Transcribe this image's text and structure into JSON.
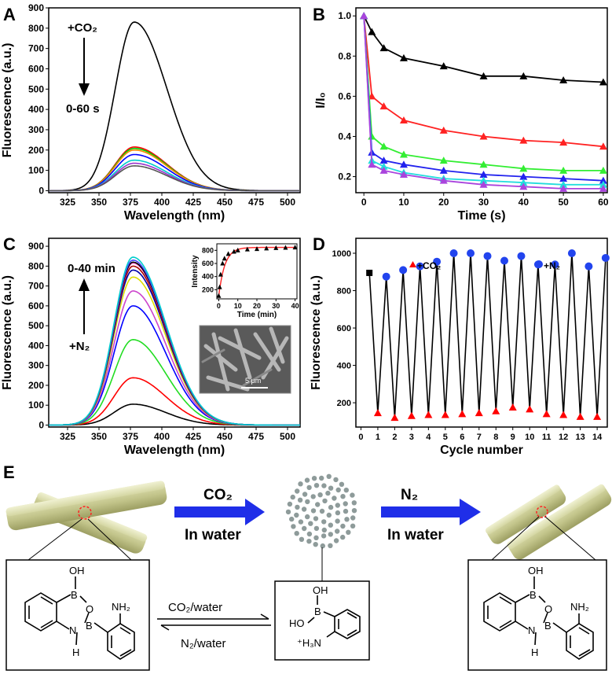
{
  "panels": {
    "A": "A",
    "B": "B",
    "C": "C",
    "D": "D",
    "E": "E"
  },
  "chart_data": [
    {
      "id": "A",
      "type": "line",
      "xlabel": "Wavelength (nm)",
      "ylabel": "Fluorescence (a.u.)",
      "xlim": [
        310,
        510
      ],
      "ylim": [
        -10,
        900
      ],
      "xticks": [
        325,
        350,
        375,
        400,
        425,
        450,
        475,
        500
      ],
      "yticks": [
        0,
        100,
        200,
        300,
        400,
        500,
        600,
        700,
        800,
        900
      ],
      "annotations": {
        "gas": "+CO₂",
        "time": "0-60 s"
      },
      "peak_x": 378,
      "series": [
        {
          "color": "#000000",
          "peak": 830
        },
        {
          "color": "#ff0000",
          "peak": 215
        },
        {
          "color": "#00cc00",
          "peak": 208
        },
        {
          "color": "#ff8800",
          "peak": 200
        },
        {
          "color": "#0000ff",
          "peak": 178
        },
        {
          "color": "#00cccc",
          "peak": 150
        },
        {
          "color": "#9933cc",
          "peak": 135
        },
        {
          "color": "#555555",
          "peak": 122
        }
      ]
    },
    {
      "id": "B",
      "type": "scatter",
      "xlabel": "Time (s)",
      "ylabel": "I/I₀",
      "xlim": [
        -2,
        61
      ],
      "ylim": [
        0.12,
        1.04
      ],
      "xticks": [
        0,
        10,
        20,
        30,
        40,
        50,
        60
      ],
      "yticks": [
        0.2,
        0.4,
        0.6,
        0.8,
        1.0
      ],
      "ytick_labels": [
        "0.2",
        "0.4",
        "0.6",
        "0.8",
        "1.0"
      ],
      "x": [
        0,
        2,
        5,
        10,
        20,
        30,
        40,
        50,
        60
      ],
      "series": [
        {
          "color": "#000000",
          "values": [
            1.0,
            0.92,
            0.84,
            0.79,
            0.75,
            0.7,
            0.7,
            0.68,
            0.67
          ]
        },
        {
          "color": "#ff2222",
          "values": [
            1.0,
            0.6,
            0.55,
            0.48,
            0.43,
            0.4,
            0.38,
            0.37,
            0.35
          ]
        },
        {
          "color": "#33ee33",
          "values": [
            1.0,
            0.4,
            0.35,
            0.31,
            0.28,
            0.26,
            0.24,
            0.23,
            0.23
          ]
        },
        {
          "color": "#2222ee",
          "values": [
            1.0,
            0.32,
            0.28,
            0.26,
            0.23,
            0.21,
            0.2,
            0.19,
            0.18
          ]
        },
        {
          "color": "#22dddd",
          "values": [
            1.0,
            0.28,
            0.25,
            0.22,
            0.19,
            0.18,
            0.17,
            0.16,
            0.16
          ]
        },
        {
          "color": "#aa44dd",
          "values": [
            1.0,
            0.26,
            0.23,
            0.21,
            0.18,
            0.16,
            0.15,
            0.14,
            0.14
          ]
        }
      ]
    },
    {
      "id": "C",
      "type": "line",
      "xlabel": "Wavelength (nm)",
      "ylabel": "Fluorescence (a.u.)",
      "xlim": [
        310,
        510
      ],
      "ylim": [
        -10,
        940
      ],
      "xticks": [
        325,
        350,
        375,
        400,
        425,
        450,
        475,
        500
      ],
      "yticks": [
        0,
        100,
        200,
        300,
        400,
        500,
        600,
        700,
        800,
        900
      ],
      "annotations": {
        "gas": "+N₂",
        "time": "0-40 min"
      },
      "peak_x": 377,
      "series": [
        {
          "color": "#000000",
          "peak": 105
        },
        {
          "color": "#ff0000",
          "peak": 238
        },
        {
          "color": "#22dd22",
          "peak": 430
        },
        {
          "color": "#0000ff",
          "peak": 600
        },
        {
          "color": "#cc44cc",
          "peak": 675
        },
        {
          "color": "#dddd00",
          "peak": 745
        },
        {
          "color": "#0000aa",
          "peak": 780
        },
        {
          "color": "#aa0000",
          "peak": 800
        },
        {
          "color": "#ff66cc",
          "peak": 815
        },
        {
          "color": "#000000",
          "peak": 820
        },
        {
          "color": "#4444ff",
          "peak": 830
        },
        {
          "color": "#00cccc",
          "peak": 845
        }
      ],
      "inset": {
        "ylabel": "Intensity",
        "xlabel": "Time (min)",
        "xlim": [
          -1,
          41
        ],
        "ylim": [
          60,
          900
        ],
        "xticks": [
          0,
          10,
          20,
          30,
          40
        ],
        "yticks": [
          200,
          400,
          600,
          800
        ],
        "x": [
          0,
          0.5,
          1,
          2,
          3,
          5,
          8,
          10,
          15,
          20,
          25,
          30,
          35,
          40
        ],
        "values": [
          105,
          238,
          430,
          600,
          675,
          745,
          780,
          800,
          815,
          820,
          830,
          835,
          840,
          845
        ],
        "scale_bar": "5 μm"
      }
    },
    {
      "id": "D",
      "type": "scatter",
      "xlabel": "Cycle number",
      "ylabel": "Fluorescence (a.u.)",
      "xlim": [
        -0.3,
        14.6
      ],
      "ylim": [
        70,
        1080
      ],
      "xticks": [
        0,
        1,
        2,
        3,
        4,
        5,
        6,
        7,
        8,
        9,
        10,
        11,
        12,
        13,
        14
      ],
      "yticks": [
        200,
        400,
        600,
        800,
        1000
      ],
      "legend": {
        "co2": "+CO₂",
        "n2": "+N₂"
      },
      "start": {
        "x": 0.5,
        "value": 895
      },
      "x": [
        1,
        1.5,
        2,
        2.5,
        3,
        3.5,
        4,
        4.5,
        5,
        5.5,
        6,
        6.5,
        7,
        7.5,
        8,
        8.5,
        9,
        9.5,
        10,
        10.5,
        11,
        11.5,
        12,
        12.5,
        13,
        13.5,
        14,
        14.5
      ],
      "values": [
        145,
        875,
        120,
        910,
        130,
        930,
        135,
        955,
        135,
        1000,
        140,
        1000,
        145,
        985,
        155,
        960,
        175,
        985,
        165,
        940,
        140,
        940,
        135,
        1000,
        125,
        930,
        125,
        975
      ]
    }
  ],
  "scheme": {
    "arrow1_top": "CO₂",
    "arrow1_bottom": "In water",
    "arrow2_top": "N₂",
    "arrow2_bottom": "In water",
    "eq_top": "CO₂/water",
    "eq_bottom": "N₂/water",
    "mol_left": {
      "OH": "OH",
      "B1": "B",
      "O": "O",
      "B2": "B",
      "N": "N",
      "H": "H",
      "NH2": "NH₂"
    },
    "mol_mid": {
      "OH": "OH",
      "HO": "HO",
      "B": "B",
      "NH3": "⁺H₃N"
    },
    "mol_right": {
      "OH": "OH",
      "B1": "B",
      "O": "O",
      "B2": "B",
      "N": "N",
      "H": "H",
      "NH2": "NH₂"
    }
  }
}
